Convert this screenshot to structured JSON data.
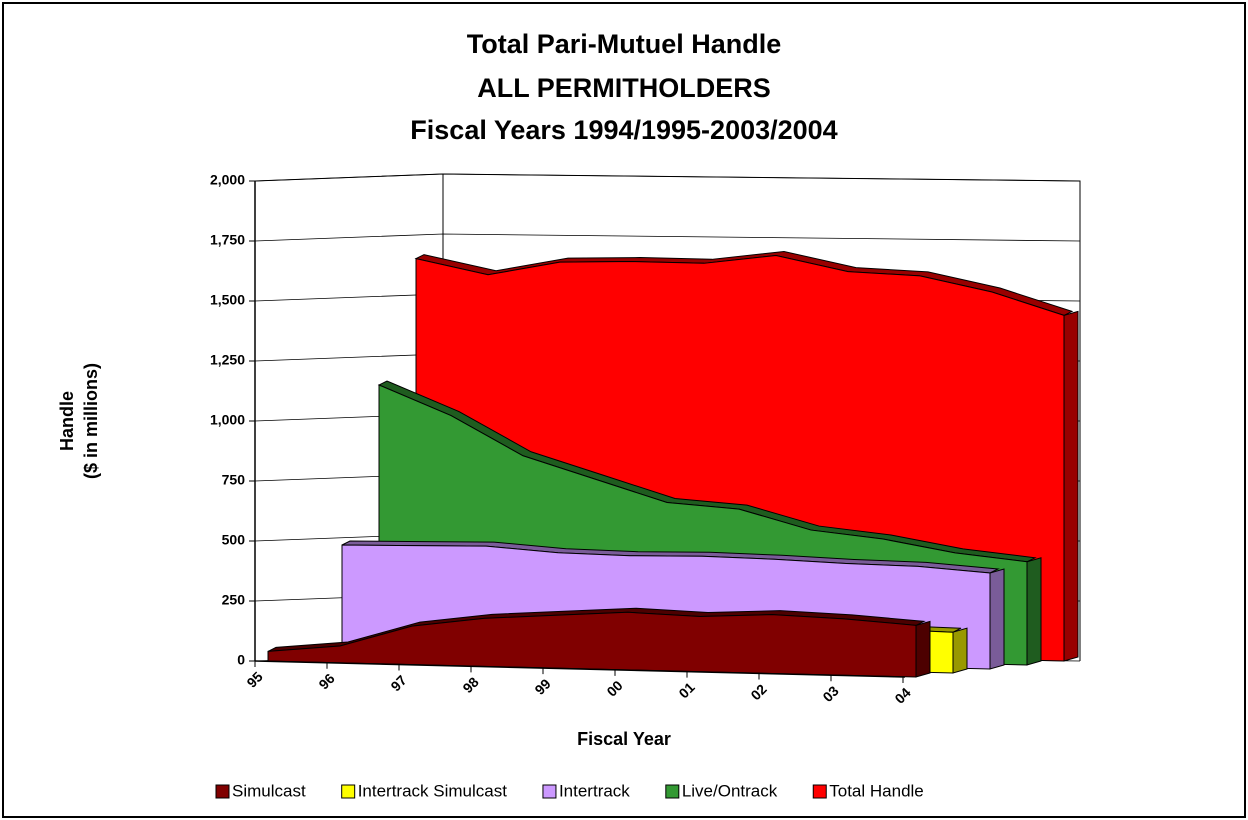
{
  "chart_data": {
    "type": "area3d",
    "title": "Total Pari-Mutuel Handle",
    "subtitle": [
      "ALL PERMITHOLDERS",
      "Fiscal Years 1994/1995-2003/2004"
    ],
    "x_label": "Fiscal Year",
    "y_label": [
      "Handle",
      "($ in millions)"
    ],
    "categories": [
      "95",
      "96",
      "97",
      "98",
      "99",
      "00",
      "01",
      "02",
      "03",
      "04"
    ],
    "series": [
      {
        "name": "Simulcast",
        "color": "#800000",
        "values": [
          40,
          70,
          160,
          200,
          220,
          240,
          230,
          245,
          235,
          215
        ]
      },
      {
        "name": "Intertrack Simulcast",
        "color": "#ffff00",
        "values": [
          0,
          0,
          0,
          30,
          90,
          130,
          150,
          165,
          175,
          170
        ]
      },
      {
        "name": "Intertrack",
        "color": "#cc99ff",
        "values": [
          450,
          455,
          460,
          440,
          435,
          440,
          435,
          425,
          420,
          400
        ]
      },
      {
        "name": "Live/Ontrack",
        "color": "#339933",
        "values": [
          1100,
          980,
          820,
          730,
          640,
          620,
          540,
          510,
          460,
          430
        ]
      },
      {
        "name": "Total Handle",
        "color": "#ff0000",
        "values": [
          1610,
          1550,
          1610,
          1620,
          1620,
          1660,
          1600,
          1590,
          1530,
          1440
        ]
      }
    ],
    "ylim": [
      0,
      2000
    ],
    "yticks": [
      0,
      250,
      500,
      750,
      {
        "value": 1000,
        "label": "1,000"
      },
      {
        "value": 1250,
        "label": "1,250"
      },
      {
        "value": 1500,
        "label": "1,500"
      },
      {
        "value": 1750,
        "label": "1,750"
      },
      {
        "value": 2000,
        "label": "2,000"
      }
    ],
    "grid": true
  }
}
